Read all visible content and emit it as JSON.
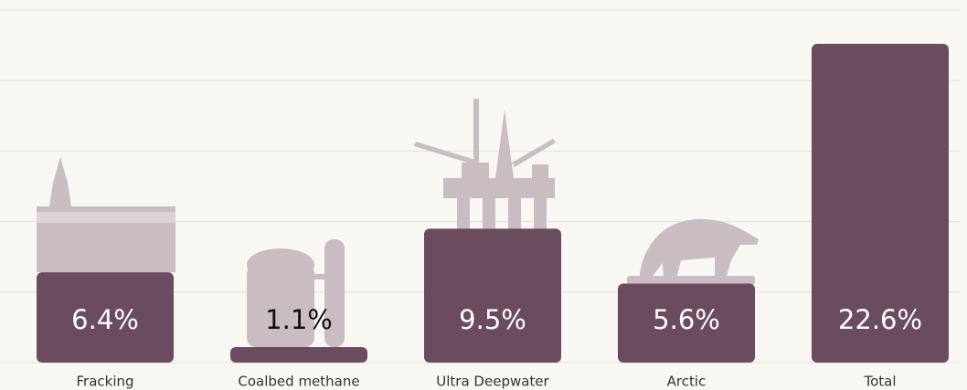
{
  "chart_data": {
    "type": "bar",
    "categories": [
      "Fracking",
      "Coalbed methane",
      "Ultra Deepwater",
      "Arctic",
      "Total"
    ],
    "values": [
      6.4,
      1.1,
      9.5,
      5.6,
      22.6
    ],
    "value_labels": [
      "6.4%",
      "1.1%",
      "9.5%",
      "5.6%",
      "22.6%"
    ],
    "color": "#6b4c5e",
    "ylim": [
      0,
      25
    ],
    "yticks": [
      0,
      5,
      10,
      15,
      20,
      25
    ],
    "grid": true
  }
}
